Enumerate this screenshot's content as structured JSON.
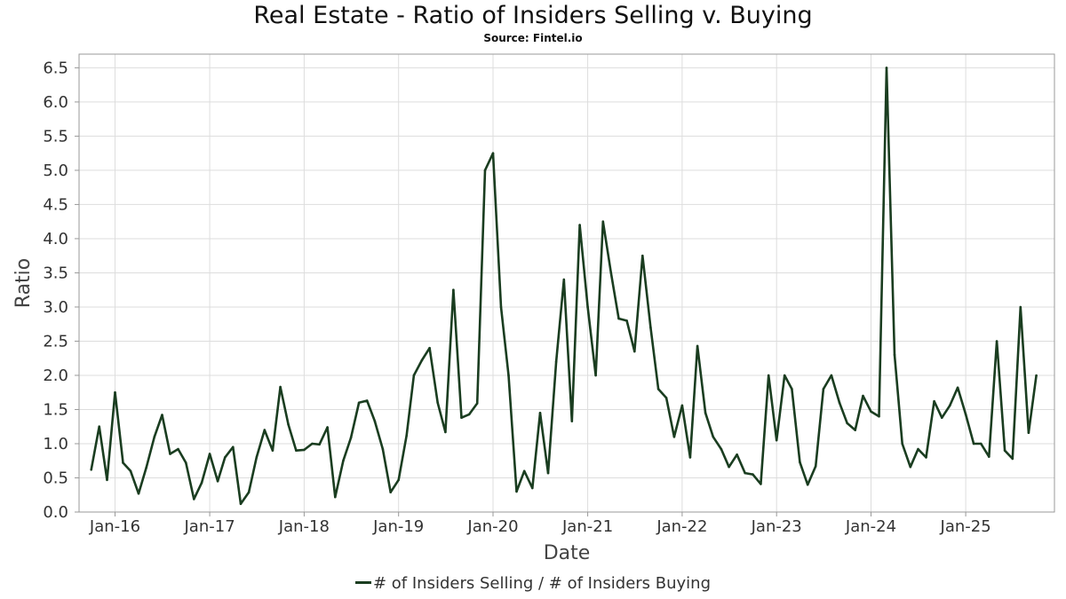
{
  "chart_data": {
    "type": "line",
    "title": "Real Estate - Ratio of Insiders Selling v. Buying",
    "subtitle": "Source: Fintel.io",
    "xlabel": "Date",
    "ylabel": "Ratio",
    "x_ticks": [
      "Jan-16",
      "Jan-17",
      "Jan-18",
      "Jan-19",
      "Jan-20",
      "Jan-21",
      "Jan-22",
      "Jan-23",
      "Jan-24",
      "Jan-25"
    ],
    "y_ticks": [
      0.0,
      0.5,
      1.0,
      1.5,
      2.0,
      2.5,
      3.0,
      3.5,
      4.0,
      4.5,
      5.0,
      5.5,
      6.0,
      6.5
    ],
    "ylim": [
      0,
      6.7
    ],
    "xlim": [
      "2015-08-15",
      "2025-12-10"
    ],
    "grid": true,
    "legend_position": "bottom-center",
    "colors": {
      "line": "#1a3d20",
      "grid": "#dddddd",
      "frame": "#999999"
    },
    "series": [
      {
        "name": "# of Insiders Selling / # of Insiders Buying",
        "points": [
          [
            "2015-10-01",
            0.62
          ],
          [
            "2015-11-01",
            1.25
          ],
          [
            "2015-12-01",
            0.47
          ],
          [
            "2016-01-01",
            1.75
          ],
          [
            "2016-02-01",
            0.72
          ],
          [
            "2016-03-01",
            0.6
          ],
          [
            "2016-04-01",
            0.27
          ],
          [
            "2016-05-01",
            0.65
          ],
          [
            "2016-06-01",
            1.1
          ],
          [
            "2016-07-01",
            1.42
          ],
          [
            "2016-08-01",
            0.85
          ],
          [
            "2016-09-01",
            0.92
          ],
          [
            "2016-10-01",
            0.72
          ],
          [
            "2016-11-01",
            0.19
          ],
          [
            "2016-12-01",
            0.43
          ],
          [
            "2017-01-01",
            0.85
          ],
          [
            "2017-02-01",
            0.45
          ],
          [
            "2017-03-01",
            0.8
          ],
          [
            "2017-04-01",
            0.95
          ],
          [
            "2017-05-01",
            0.12
          ],
          [
            "2017-06-01",
            0.29
          ],
          [
            "2017-07-01",
            0.8
          ],
          [
            "2017-08-01",
            1.2
          ],
          [
            "2017-09-01",
            0.9
          ],
          [
            "2017-10-01",
            1.83
          ],
          [
            "2017-11-01",
            1.28
          ],
          [
            "2017-12-01",
            0.9
          ],
          [
            "2018-01-01",
            0.91
          ],
          [
            "2018-02-01",
            1.0
          ],
          [
            "2018-03-01",
            0.99
          ],
          [
            "2018-04-01",
            1.24
          ],
          [
            "2018-05-01",
            0.22
          ],
          [
            "2018-06-01",
            0.75
          ],
          [
            "2018-07-01",
            1.09
          ],
          [
            "2018-08-01",
            1.6
          ],
          [
            "2018-09-01",
            1.63
          ],
          [
            "2018-10-01",
            1.33
          ],
          [
            "2018-11-01",
            0.92
          ],
          [
            "2018-12-01",
            0.29
          ],
          [
            "2019-01-01",
            0.47
          ],
          [
            "2019-02-01",
            1.12
          ],
          [
            "2019-03-01",
            2.0
          ],
          [
            "2019-04-01",
            2.22
          ],
          [
            "2019-05-01",
            2.4
          ],
          [
            "2019-06-01",
            1.6
          ],
          [
            "2019-07-01",
            1.17
          ],
          [
            "2019-08-01",
            3.25
          ],
          [
            "2019-09-01",
            1.38
          ],
          [
            "2019-10-01",
            1.43
          ],
          [
            "2019-11-01",
            1.59
          ],
          [
            "2019-12-01",
            5.0
          ],
          [
            "2020-01-01",
            5.25
          ],
          [
            "2020-02-01",
            3.0
          ],
          [
            "2020-03-01",
            2.0
          ],
          [
            "2020-04-01",
            0.3
          ],
          [
            "2020-05-01",
            0.6
          ],
          [
            "2020-06-01",
            0.35
          ],
          [
            "2020-07-01",
            1.45
          ],
          [
            "2020-08-01",
            0.57
          ],
          [
            "2020-09-01",
            2.2
          ],
          [
            "2020-10-01",
            3.4
          ],
          [
            "2020-11-01",
            1.33
          ],
          [
            "2020-12-01",
            4.2
          ],
          [
            "2021-01-01",
            3.0
          ],
          [
            "2021-02-01",
            2.0
          ],
          [
            "2021-03-01",
            4.25
          ],
          [
            "2021-04-01",
            3.5
          ],
          [
            "2021-05-01",
            2.83
          ],
          [
            "2021-06-01",
            2.8
          ],
          [
            "2021-07-01",
            2.35
          ],
          [
            "2021-08-01",
            3.75
          ],
          [
            "2021-09-01",
            2.7
          ],
          [
            "2021-10-01",
            1.8
          ],
          [
            "2021-11-01",
            1.67
          ],
          [
            "2021-12-01",
            1.1
          ],
          [
            "2022-01-01",
            1.56
          ],
          [
            "2022-02-01",
            0.8
          ],
          [
            "2022-03-01",
            2.43
          ],
          [
            "2022-04-01",
            1.45
          ],
          [
            "2022-05-01",
            1.1
          ],
          [
            "2022-06-01",
            0.92
          ],
          [
            "2022-07-01",
            0.66
          ],
          [
            "2022-08-01",
            0.84
          ],
          [
            "2022-09-01",
            0.57
          ],
          [
            "2022-10-01",
            0.55
          ],
          [
            "2022-11-01",
            0.41
          ],
          [
            "2022-12-01",
            2.0
          ],
          [
            "2023-01-01",
            1.05
          ],
          [
            "2023-02-01",
            2.0
          ],
          [
            "2023-03-01",
            1.8
          ],
          [
            "2023-04-01",
            0.73
          ],
          [
            "2023-05-01",
            0.4
          ],
          [
            "2023-06-01",
            0.67
          ],
          [
            "2023-07-01",
            1.8
          ],
          [
            "2023-08-01",
            2.0
          ],
          [
            "2023-09-01",
            1.6
          ],
          [
            "2023-10-01",
            1.3
          ],
          [
            "2023-11-01",
            1.2
          ],
          [
            "2023-12-01",
            1.7
          ],
          [
            "2024-01-01",
            1.47
          ],
          [
            "2024-02-01",
            1.4
          ],
          [
            "2024-03-01",
            6.5
          ],
          [
            "2024-04-01",
            2.3
          ],
          [
            "2024-05-01",
            1.0
          ],
          [
            "2024-06-01",
            0.66
          ],
          [
            "2024-07-01",
            0.92
          ],
          [
            "2024-08-01",
            0.8
          ],
          [
            "2024-09-01",
            1.62
          ],
          [
            "2024-10-01",
            1.38
          ],
          [
            "2024-11-01",
            1.56
          ],
          [
            "2024-12-01",
            1.82
          ],
          [
            "2025-01-01",
            1.43
          ],
          [
            "2025-02-01",
            1.0
          ],
          [
            "2025-03-01",
            1.0
          ],
          [
            "2025-04-01",
            0.81
          ],
          [
            "2025-05-01",
            2.5
          ],
          [
            "2025-06-01",
            0.9
          ],
          [
            "2025-07-01",
            0.78
          ],
          [
            "2025-08-01",
            3.0
          ],
          [
            "2025-09-01",
            1.16
          ],
          [
            "2025-10-01",
            2.0
          ]
        ]
      }
    ]
  }
}
